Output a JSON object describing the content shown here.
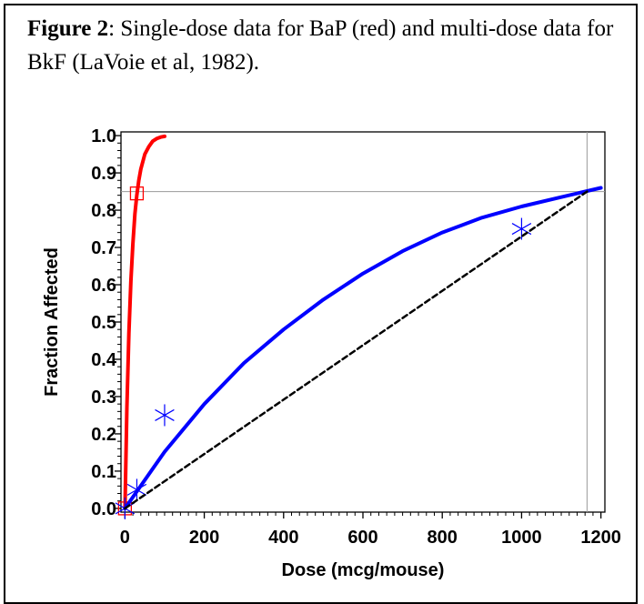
{
  "caption": {
    "label": "Figure 2",
    "text": ": Single-dose data for BaP (red) and multi-dose data for BkF (LaVoie et al, 1982)."
  },
  "chart_data": {
    "type": "line",
    "title": "",
    "xlabel": "Dose  (mcg/mouse)",
    "ylabel": "Fraction  Affected",
    "xlim": [
      -10,
      1210
    ],
    "ylim": [
      -0.01,
      1.01
    ],
    "xticks": [
      0,
      200,
      400,
      600,
      800,
      1000,
      1200
    ],
    "yticks": [
      0.0,
      0.1,
      0.2,
      0.3,
      0.4,
      0.5,
      0.6,
      0.7,
      0.8,
      0.9,
      1.0
    ],
    "ytick_labels": [
      "0.0",
      "0.1",
      "0.2",
      "0.3",
      "0.4",
      "0.5",
      "0.6",
      "0.7",
      "0.8",
      "0.9",
      "1.0"
    ],
    "grid": false,
    "series": [
      {
        "kind": "fitted_curve",
        "color": "#ff0000",
        "x": [
          0,
          5,
          10,
          15,
          20,
          25,
          30,
          35,
          40,
          50,
          60,
          70,
          80,
          90,
          100
        ],
        "y": [
          0.0,
          0.27,
          0.47,
          0.61,
          0.71,
          0.79,
          0.84,
          0.88,
          0.91,
          0.95,
          0.97,
          0.985,
          0.992,
          0.996,
          0.998
        ]
      },
      {
        "kind": "observed_points",
        "marker": "square",
        "color": "#ff0000",
        "x": [
          0,
          30
        ],
        "y": [
          0.0,
          0.845
        ]
      },
      {
        "kind": "fitted_curve",
        "color": "#0000ff",
        "x": [
          0,
          100,
          200,
          300,
          400,
          500,
          600,
          700,
          800,
          900,
          1000,
          1100,
          1200
        ],
        "y": [
          0.0,
          0.152,
          0.28,
          0.39,
          0.48,
          0.56,
          0.63,
          0.69,
          0.74,
          0.78,
          0.81,
          0.835,
          0.86
        ]
      },
      {
        "kind": "observed_points",
        "marker": "asterisk",
        "color": "#0000ff",
        "x": [
          0,
          30,
          100,
          1000
        ],
        "y": [
          0.0,
          0.05,
          0.25,
          0.75
        ]
      },
      {
        "kind": "linear_line",
        "style": "dashed",
        "color": "#000000",
        "x": [
          0,
          1165
        ],
        "y": [
          0.0,
          0.85
        ]
      }
    ],
    "reference_lines": {
      "horizontal_y": 0.85,
      "vertical_x": 1165,
      "color": "#999999"
    }
  }
}
